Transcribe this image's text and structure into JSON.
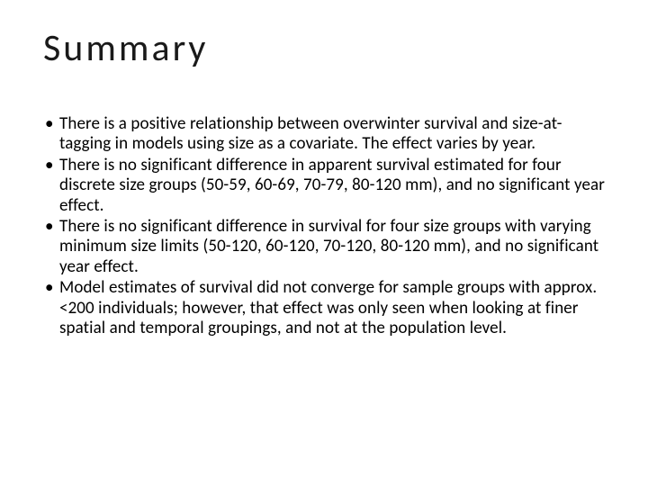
{
  "slide": {
    "title": "Summary",
    "title_fontsize": 42,
    "title_color": "#1a1a1a",
    "title_letter_spacing": 3,
    "bullets": [
      "There is a positive relationship between overwinter survival and size-at-tagging in models using size as a covariate.  The effect varies by year.",
      "There is no significant difference in apparent survival estimated for four discrete size groups (50-59, 60-69, 70-79, 80-120 mm), and no significant year effect.",
      "There is no significant difference in survival for four size groups with varying minimum size limits (50-120, 60-120, 70-120, 80-120 mm), and no significant year effect.",
      "Model estimates of survival did not converge for sample groups with approx. <200 individuals; however, that effect was only seen when looking at finer spatial and temporal groupings, and not at the population level."
    ],
    "bullet_fontsize": 19,
    "bullet_color": "#000000",
    "background_color": "#ffffff"
  }
}
